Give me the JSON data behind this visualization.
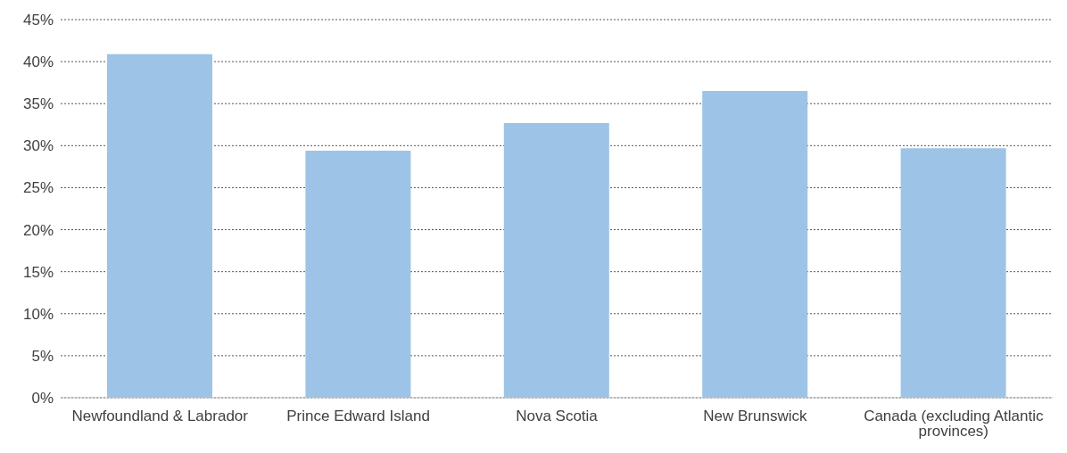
{
  "chart_data": {
    "type": "bar",
    "categories": [
      "Newfoundland & Labrador",
      "Prince Edward Island",
      "Nova Scotia",
      "New Brunswick",
      "Canada (excluding Atlantic provinces)"
    ],
    "values": [
      40.9,
      29.4,
      32.7,
      36.5,
      29.7
    ],
    "color": "#9dc3e6",
    "ylim": [
      0,
      45
    ],
    "yticks": [
      {
        "value": 0,
        "label": "0%"
      },
      {
        "value": 5,
        "label": "5%"
      },
      {
        "value": 10,
        "label": "10%"
      },
      {
        "value": 15,
        "label": "15%"
      },
      {
        "value": 20,
        "label": "20%"
      },
      {
        "value": 25,
        "label": "25%"
      },
      {
        "value": 30,
        "label": "30%"
      },
      {
        "value": 35,
        "label": "35%"
      },
      {
        "value": 40,
        "label": "40%"
      },
      {
        "value": 45,
        "label": "45%"
      }
    ],
    "grid": "y",
    "legend": false
  }
}
